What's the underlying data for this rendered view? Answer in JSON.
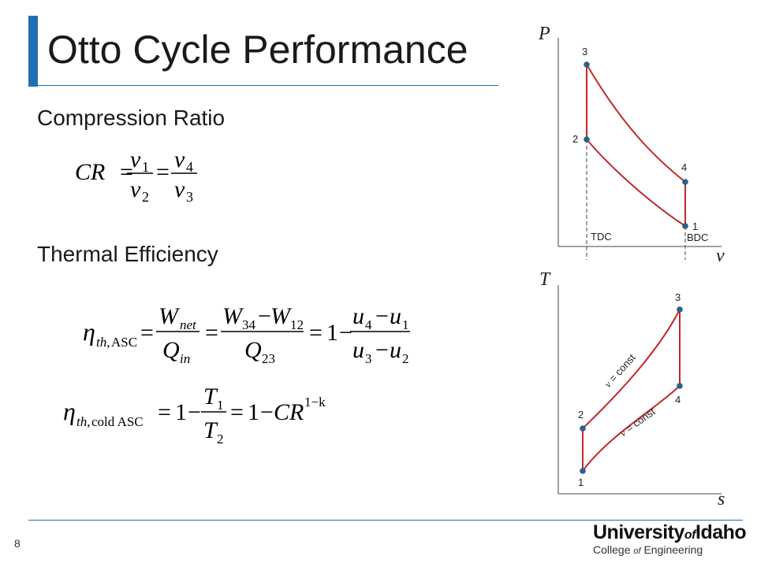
{
  "slide": {
    "title": "Otto Cycle Performance",
    "page_number": "8",
    "colors": {
      "accent": "#1f6fb2",
      "curve": "#c0292b",
      "point": "#2d5f8a",
      "rule": "#1f6fb2"
    }
  },
  "sections": {
    "compression_ratio": "Compression Ratio",
    "thermal_efficiency": "Thermal Efficiency"
  },
  "equations": {
    "cr": {
      "lhs": "CR",
      "eq": "=",
      "f1_num": "v",
      "f1_num_sub": "1",
      "f1_den": "v",
      "f1_den_sub": "2",
      "f2_num": "v",
      "f2_num_sub": "4",
      "f2_den": "v",
      "f2_den_sub": "3"
    },
    "eta_asc": {
      "eta": "η",
      "sub_th": "th,",
      "sub_asc": "ASC",
      "eq": "=",
      "w": "W",
      "w_sub": "net",
      "q": "Q",
      "q_sub": "in",
      "w34": "W",
      "w34_sub": "34",
      "minus": "−",
      "w12": "W",
      "w12_sub": "12",
      "q23": "Q",
      "q23_sub": "23",
      "one": "1",
      "u4": "u",
      "u4_sub": "4",
      "u1": "u",
      "u1_sub": "1",
      "u3": "u",
      "u3_sub": "3",
      "u2": "u",
      "u2_sub": "2"
    },
    "eta_cold": {
      "eta": "η",
      "sub_th": "th,",
      "sub_cold": "cold ASC",
      "eq": "=",
      "one": "1",
      "minus": "−",
      "t1": "T",
      "t1_sub": "1",
      "t2": "T",
      "t2_sub": "2",
      "cr": "CR",
      "exp": "1−k"
    }
  },
  "pv_diagram": {
    "y_axis": "P",
    "x_axis": "v",
    "points": [
      {
        "label": "1"
      },
      {
        "label": "2"
      },
      {
        "label": "3"
      },
      {
        "label": "4"
      }
    ],
    "markers": {
      "tdc": "TDC",
      "bdc": "BDC"
    }
  },
  "ts_diagram": {
    "y_axis": "T",
    "x_axis": "s",
    "points": [
      {
        "label": "1"
      },
      {
        "label": "2"
      },
      {
        "label": "3"
      },
      {
        "label": "4"
      }
    ],
    "curve_labels": {
      "upper_v": "v",
      "upper_text": " = const",
      "lower_v": "v",
      "lower_text": " = const"
    }
  },
  "logo": {
    "main_left": "University",
    "main_of": "of",
    "main_right": "Idaho",
    "sub_left": "College ",
    "sub_of": "of",
    "sub_right": " Engineering"
  }
}
